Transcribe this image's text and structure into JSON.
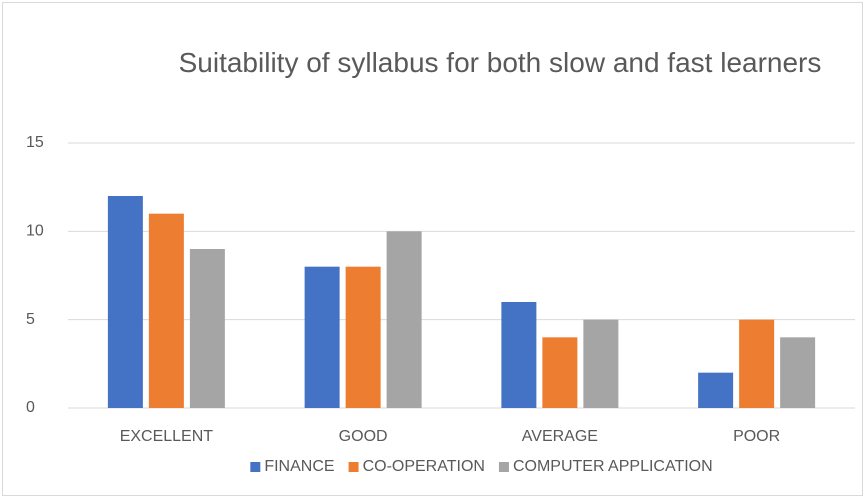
{
  "chart_data": {
    "type": "bar",
    "title": "Suitability of syllabus for both slow and fast learners",
    "categories": [
      "EXCELLENT",
      "GOOD",
      "AVERAGE",
      "POOR"
    ],
    "series": [
      {
        "name": "FINANCE",
        "color": "#4472c4",
        "values": [
          12,
          8,
          6,
          2
        ]
      },
      {
        "name": "CO-OPERATION",
        "color": "#ed7d31",
        "values": [
          11,
          8,
          4,
          5
        ]
      },
      {
        "name": "COMPUTER APPLICATION",
        "color": "#a5a5a5",
        "values": [
          9,
          10,
          5,
          4
        ]
      }
    ],
    "ylim": [
      0,
      15
    ],
    "yticks": [
      0,
      5,
      10,
      15
    ],
    "grid": true,
    "legend": "bottom"
  }
}
